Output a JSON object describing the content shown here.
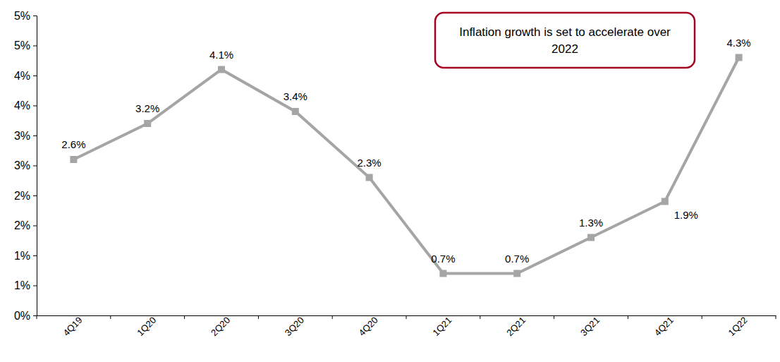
{
  "chart_data": {
    "type": "line",
    "annotation": "Inflation growth is set to accelerate over 2022",
    "categories": [
      "4Q19",
      "1Q20",
      "2Q20",
      "3Q20",
      "4Q20",
      "1Q21",
      "2Q21",
      "3Q21",
      "4Q21",
      "1Q22"
    ],
    "values": [
      2.6,
      3.2,
      4.1,
      3.4,
      2.3,
      0.7,
      0.7,
      1.3,
      1.9,
      4.3
    ],
    "value_labels": [
      "2.6%",
      "3.2%",
      "4.1%",
      "3.4%",
      "2.3%",
      "0.7%",
      "0.7%",
      "1.3%",
      "1.9%",
      "4.3%"
    ],
    "data_labels": true,
    "color": "#a5a5a5",
    "marker": "square",
    "grid": false,
    "ylim": [
      0,
      5
    ],
    "yticks": [
      {
        "value": 0,
        "label": "0%"
      },
      {
        "value": 0.5,
        "label": "1%"
      },
      {
        "value": 1,
        "label": "1%"
      },
      {
        "value": 1.5,
        "label": "2%"
      },
      {
        "value": 2,
        "label": "2%"
      },
      {
        "value": 2.5,
        "label": "3%"
      },
      {
        "value": 3,
        "label": "3%"
      },
      {
        "value": 3.5,
        "label": "4%"
      },
      {
        "value": 4,
        "label": "4%"
      },
      {
        "value": 4.5,
        "label": "5%"
      },
      {
        "value": 5,
        "label": "5%"
      }
    ]
  }
}
